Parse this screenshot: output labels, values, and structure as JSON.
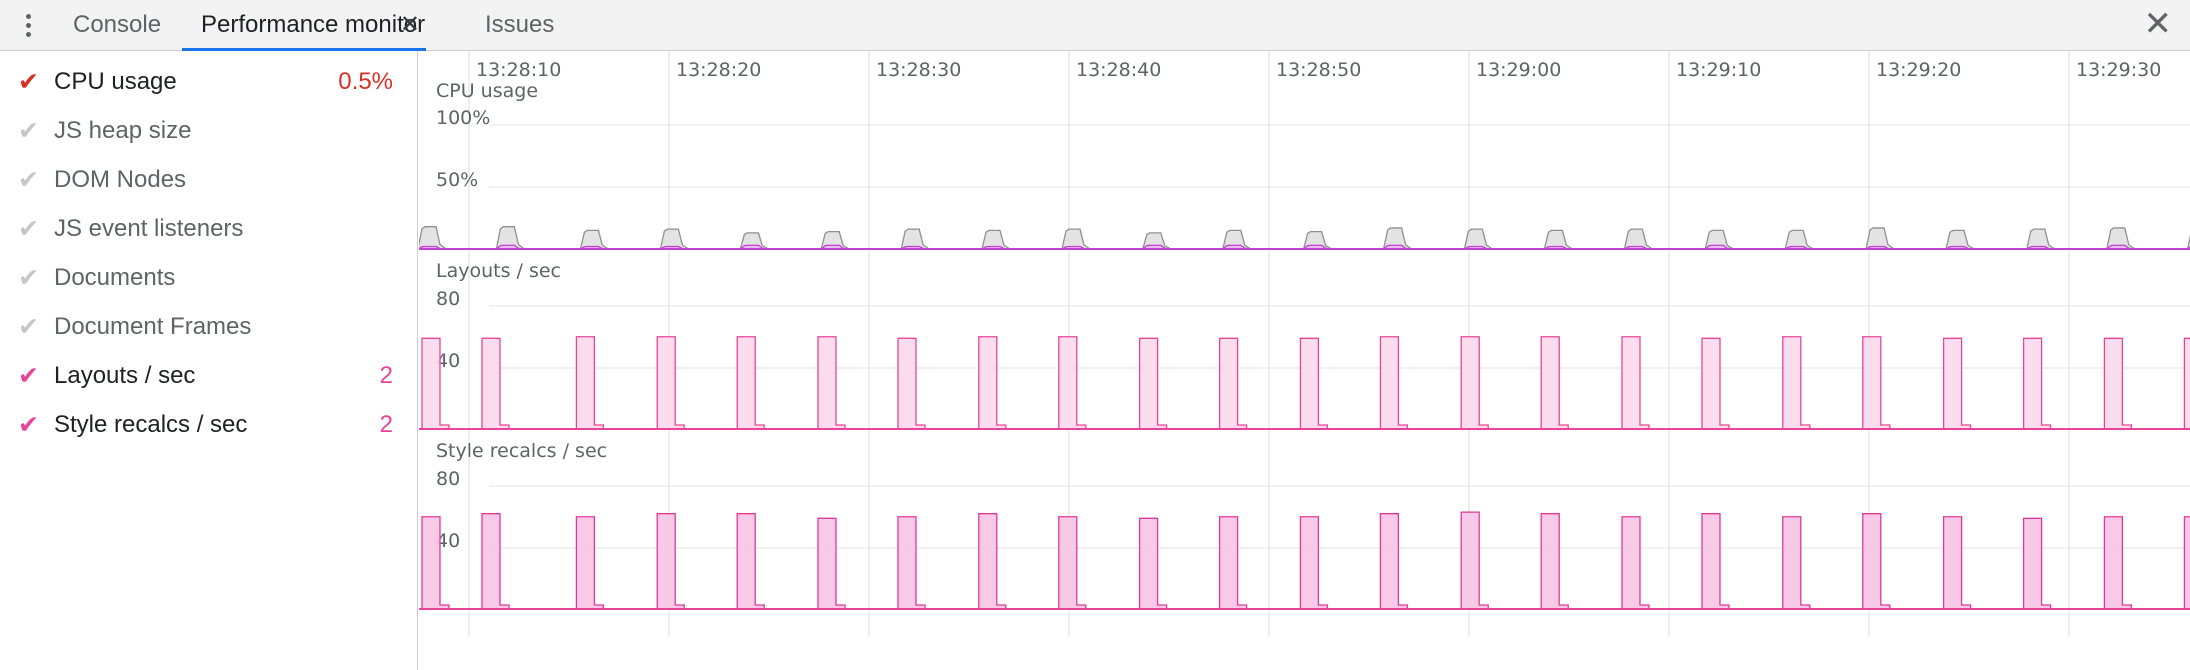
{
  "toolbar": {
    "menu_icon": "more-vert-icon",
    "tabs": [
      {
        "label": "Console"
      },
      {
        "label": "Performance monitor",
        "close_glyph": "✕"
      },
      {
        "label": "Issues"
      }
    ],
    "close_glyph": "✕",
    "accent": "#1a73e8"
  },
  "sidebar": {
    "metrics": [
      {
        "label": "CPU usage",
        "checked": true,
        "value": "0.5%",
        "color": "#d93025"
      },
      {
        "label": "JS heap size",
        "checked": false,
        "value": ""
      },
      {
        "label": "DOM Nodes",
        "checked": false,
        "value": ""
      },
      {
        "label": "JS event listeners",
        "checked": false,
        "value": ""
      },
      {
        "label": "Documents",
        "checked": false,
        "value": ""
      },
      {
        "label": "Document Frames",
        "checked": false,
        "value": ""
      },
      {
        "label": "Layouts / sec",
        "checked": true,
        "value": "2",
        "color": "#e8459a"
      },
      {
        "label": "Style recalcs / sec",
        "checked": true,
        "value": "2",
        "color": "#e8459a"
      }
    ]
  },
  "chart_data": [
    {
      "type": "area",
      "title": "CPU usage",
      "y_ticks": [
        "100%",
        "50%"
      ],
      "ylim": [
        0,
        100
      ],
      "x_tick_labels": [
        "13:28:10",
        "13:28:20",
        "13:28:30",
        "13:28:40",
        "13:28:50",
        "13:29:00",
        "13:29:10",
        "13:29:20",
        "13:29:30"
      ],
      "pulse_times": [
        0,
        9.8,
        20.3,
        30.3,
        40.3,
        50.4,
        60.4,
        70.5,
        80.5,
        90.6,
        100.6,
        110.7,
        120.7,
        130.8,
        140.8,
        150.8,
        160.9,
        170.9,
        181.0,
        191.0,
        201.1,
        211.1,
        221.2
      ],
      "series": [
        {
          "values": [
            18,
            18,
            15,
            16,
            13,
            14,
            16,
            15,
            16,
            13,
            15,
            14,
            17,
            16,
            15,
            16,
            15,
            15,
            17,
            15,
            16,
            17,
            17
          ],
          "color": "#909090",
          "fill": "#e0e0e0"
        },
        {
          "values": [
            2,
            3,
            2,
            2,
            3,
            3,
            2,
            2,
            2,
            3,
            3,
            3,
            3,
            2,
            2,
            2,
            3,
            2,
            2,
            2,
            2,
            3,
            3
          ],
          "color": "#c040d0",
          "fill": "#e8b8f0"
        }
      ],
      "grid": true
    },
    {
      "type": "area",
      "title": "Layouts / sec",
      "y_ticks": [
        "80",
        "40"
      ],
      "ylim": [
        0,
        80
      ],
      "pulse_times": [
        0,
        7.5,
        19.3,
        29.4,
        39.4,
        49.5,
        59.5,
        69.6,
        79.6,
        89.7,
        99.7,
        109.8,
        119.8,
        129.9,
        139.9,
        150.0,
        160.0,
        170.1,
        180.1,
        190.2,
        200.2,
        210.3,
        220.3
      ],
      "series": [
        {
          "values": [
            59,
            59,
            60,
            60,
            60,
            60,
            59,
            60,
            60,
            59,
            59,
            59,
            60,
            60,
            60,
            60,
            59,
            60,
            60,
            59,
            59,
            59,
            59
          ],
          "color": "#e8459a",
          "fill": "#fbd9ec"
        }
      ],
      "grid": true
    },
    {
      "type": "area",
      "title": "Style recalcs / sec",
      "y_ticks": [
        "80",
        "40"
      ],
      "ylim": [
        0,
        80
      ],
      "pulse_times": [
        0,
        7.5,
        19.3,
        29.4,
        39.4,
        49.5,
        59.5,
        69.6,
        79.6,
        89.7,
        99.7,
        109.8,
        119.8,
        129.9,
        139.9,
        150.0,
        160.0,
        170.1,
        180.1,
        190.2,
        200.2,
        210.3,
        220.3
      ],
      "series": [
        {
          "values": [
            60,
            62,
            60,
            62,
            62,
            59,
            60,
            62,
            60,
            59,
            60,
            60,
            62,
            63,
            62,
            60,
            62,
            60,
            62,
            60,
            59,
            60,
            60
          ],
          "color": "#e0389a",
          "fill": "#f8c4e4"
        }
      ],
      "grid": true
    }
  ]
}
